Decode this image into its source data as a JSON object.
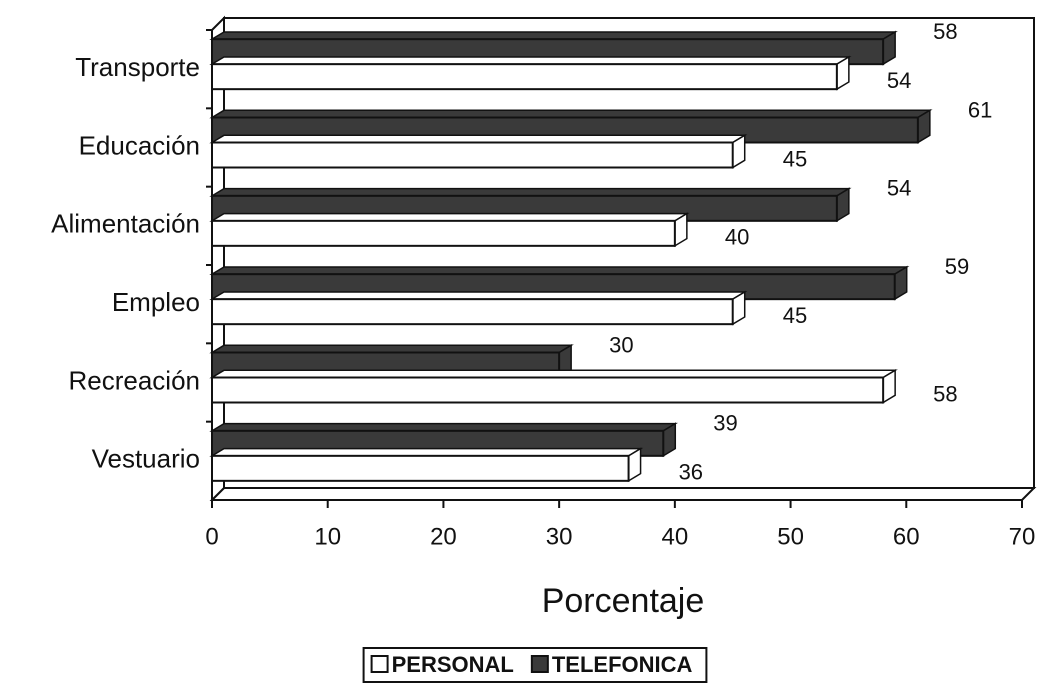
{
  "chart_data": {
    "type": "bar",
    "categories": [
      "Transporte",
      "Educación",
      "Alimentación",
      "Empleo",
      "Recreación",
      "Vestuario"
    ],
    "series": [
      {
        "name": "PERSONAL",
        "color": "#ffffff",
        "values": [
          54,
          45,
          40,
          45,
          58,
          36
        ]
      },
      {
        "name": "TELEFONICA",
        "color": "#3a3a3a",
        "values": [
          58,
          61,
          54,
          59,
          30,
          39
        ]
      }
    ],
    "xlabel": "Porcentaje",
    "xlim": [
      0,
      70
    ],
    "xticks": [
      0,
      10,
      20,
      30,
      40,
      50,
      60,
      70
    ],
    "legend": "bottom"
  }
}
